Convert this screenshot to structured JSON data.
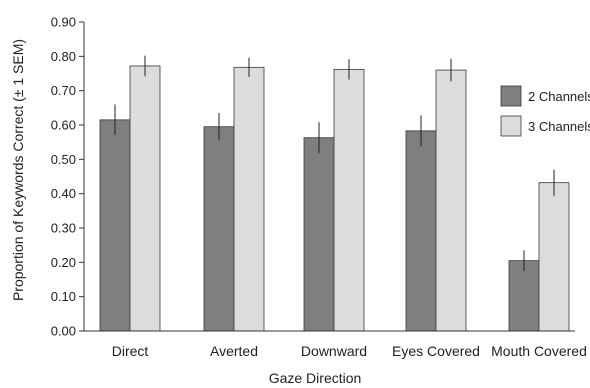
{
  "chart_data": {
    "type": "bar",
    "title": "",
    "xlabel": "Gaze Direction",
    "ylabel": "Proportion of Keywords Correct (± 1 SEM)",
    "ylim": [
      0,
      0.9
    ],
    "yticks": [
      "0.00",
      "0.10",
      "0.20",
      "0.30",
      "0.40",
      "0.50",
      "0.60",
      "0.70",
      "0.80",
      "0.90"
    ],
    "categories": [
      "Direct",
      "Averted",
      "Downward",
      "Eyes Covered",
      "Mouth Covered"
    ],
    "series": [
      {
        "name": "2 Channels",
        "color": "#7f7f7f",
        "values": [
          0.615,
          0.595,
          0.563,
          0.583,
          0.205
        ],
        "sem": [
          0.045,
          0.04,
          0.045,
          0.045,
          0.03
        ]
      },
      {
        "name": "3 Channels",
        "color": "#dcdcdc",
        "values": [
          0.772,
          0.768,
          0.762,
          0.76,
          0.432
        ],
        "sem": [
          0.03,
          0.028,
          0.03,
          0.033,
          0.038
        ]
      }
    ],
    "legend_position": "right",
    "grid": false
  }
}
